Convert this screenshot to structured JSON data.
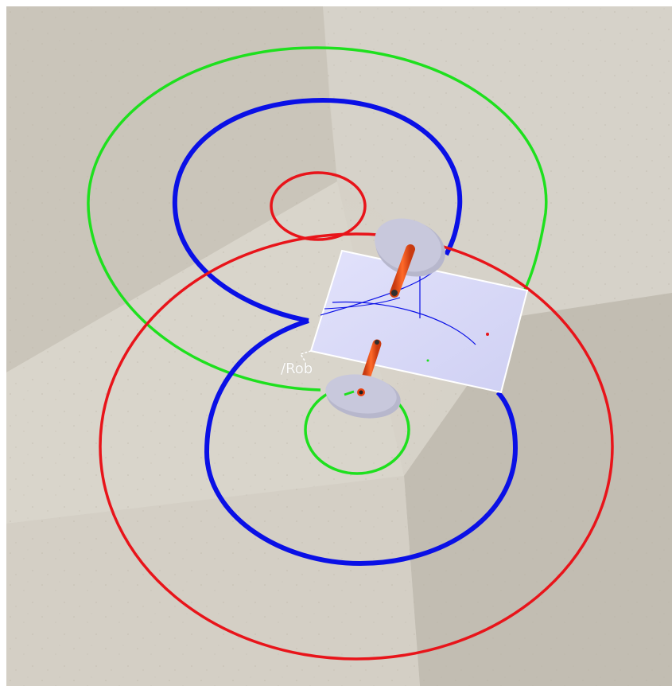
{
  "viewport": {
    "title": "",
    "robot_label": "/Rob"
  },
  "colors": {
    "path_red": "#e8141a",
    "path_blue": "#0a10e6",
    "path_green": "#1ee01e",
    "plate": "#d8d8f8",
    "wheel": "#c8c8dc",
    "axle": "#f04a14"
  },
  "icons": {
    "robot": "robot-model-icon"
  }
}
